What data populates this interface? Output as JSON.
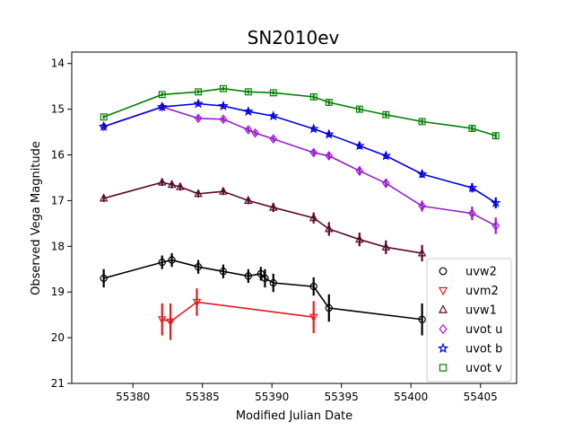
{
  "chart_data": {
    "type": "scatter",
    "title": "SN2010ev",
    "xlabel": "Modified Julian Date",
    "ylabel": "Observed Vega Magnitude",
    "xlim": [
      55375.6,
      55407.6
    ],
    "ylim": [
      21,
      13.75
    ],
    "y_inverted": true,
    "x_ticks": [
      55380,
      55385,
      55390,
      55395,
      55400,
      55405
    ],
    "y_ticks": [
      14,
      15,
      16,
      17,
      18,
      19,
      20,
      21
    ],
    "grid": false,
    "legend_position": "lower-right",
    "series": [
      {
        "name": "uvw2",
        "color": "#000000",
        "marker": "circle",
        "x": [
          55377.9,
          55382.1,
          55382.8,
          55384.7,
          55386.5,
          55388.3,
          55389.2,
          55389.5,
          55390.1,
          55393.0,
          55394.1,
          55400.8
        ],
        "y": [
          18.7,
          18.35,
          18.3,
          18.45,
          18.55,
          18.65,
          18.6,
          18.7,
          18.8,
          18.88,
          19.35,
          19.6
        ],
        "err": [
          0.2,
          0.15,
          0.15,
          0.15,
          0.15,
          0.15,
          0.15,
          0.2,
          0.2,
          0.2,
          0.3,
          0.35
        ]
      },
      {
        "name": "uvm2",
        "color": "#e41a1c",
        "marker": "triangle-down",
        "x": [
          55382.1,
          55382.7,
          55384.6,
          55393.0
        ],
        "y": [
          19.6,
          19.65,
          19.22,
          19.55
        ],
        "err": [
          0.35,
          0.4,
          0.3,
          0.35
        ]
      },
      {
        "name": "uvw1",
        "color": "#5c0a2a",
        "marker": "triangle-up",
        "x": [
          55377.9,
          55382.1,
          55382.8,
          55383.4,
          55384.7,
          55386.5,
          55388.3,
          55390.1,
          55393.0,
          55394.1,
          55396.3,
          55398.2,
          55400.8
        ],
        "y": [
          16.95,
          16.6,
          16.65,
          16.7,
          16.85,
          16.8,
          17.0,
          17.15,
          17.38,
          17.62,
          17.85,
          18.02,
          18.15
        ],
        "err": [
          0.08,
          0.08,
          0.08,
          0.08,
          0.08,
          0.08,
          0.08,
          0.1,
          0.12,
          0.15,
          0.15,
          0.15,
          0.18
        ]
      },
      {
        "name": "uvot u",
        "color": "#9a1ad6",
        "marker": "diamond",
        "x": [
          55377.9,
          55382.1,
          55384.7,
          55386.5,
          55388.3,
          55388.8,
          55390.1,
          55393.0,
          55394.1,
          55396.3,
          55398.2,
          55400.8,
          55404.4,
          55406.1
        ],
        "y": [
          15.38,
          14.95,
          15.2,
          15.22,
          15.45,
          15.52,
          15.65,
          15.95,
          16.02,
          16.35,
          16.62,
          17.12,
          17.28,
          17.55
        ],
        "err": [
          0.05,
          0.05,
          0.05,
          0.05,
          0.05,
          0.05,
          0.05,
          0.07,
          0.07,
          0.1,
          0.1,
          0.12,
          0.15,
          0.18
        ]
      },
      {
        "name": "uvot b",
        "color": "#0000e0",
        "marker": "star",
        "x": [
          55377.9,
          55382.1,
          55384.7,
          55386.5,
          55388.3,
          55390.1,
          55393.0,
          55394.1,
          55396.3,
          55398.2,
          55400.8,
          55404.4,
          55406.1
        ],
        "y": [
          15.38,
          14.95,
          14.88,
          14.93,
          15.05,
          15.15,
          15.43,
          15.55,
          15.8,
          16.02,
          16.42,
          16.72,
          17.05
        ],
        "err": [
          0.05,
          0.05,
          0.05,
          0.05,
          0.05,
          0.05,
          0.06,
          0.06,
          0.07,
          0.07,
          0.08,
          0.1,
          0.12
        ]
      },
      {
        "name": "uvot v",
        "color": "#008000",
        "marker": "square",
        "x": [
          55377.9,
          55382.1,
          55384.7,
          55386.5,
          55388.3,
          55390.1,
          55393.0,
          55394.1,
          55396.3,
          55398.2,
          55400.8,
          55404.4,
          55406.1
        ],
        "y": [
          15.17,
          14.68,
          14.62,
          14.55,
          14.62,
          14.64,
          14.73,
          14.85,
          15.0,
          15.12,
          15.27,
          15.42,
          15.58
        ],
        "err": [
          0.04,
          0.04,
          0.04,
          0.04,
          0.04,
          0.04,
          0.05,
          0.05,
          0.05,
          0.05,
          0.05,
          0.06,
          0.06
        ]
      }
    ],
    "extra_points": [
      {
        "x": 55402.9,
        "y": 18.72,
        "err": 0.25,
        "color": "#e8c8d8"
      },
      {
        "x": 55404.4,
        "y": 18.68,
        "err": 0.25,
        "color": "#e8c8d8"
      },
      {
        "x": 55406.1,
        "y": 18.85,
        "err": 0.3,
        "color": "#e8c8d8"
      }
    ]
  }
}
